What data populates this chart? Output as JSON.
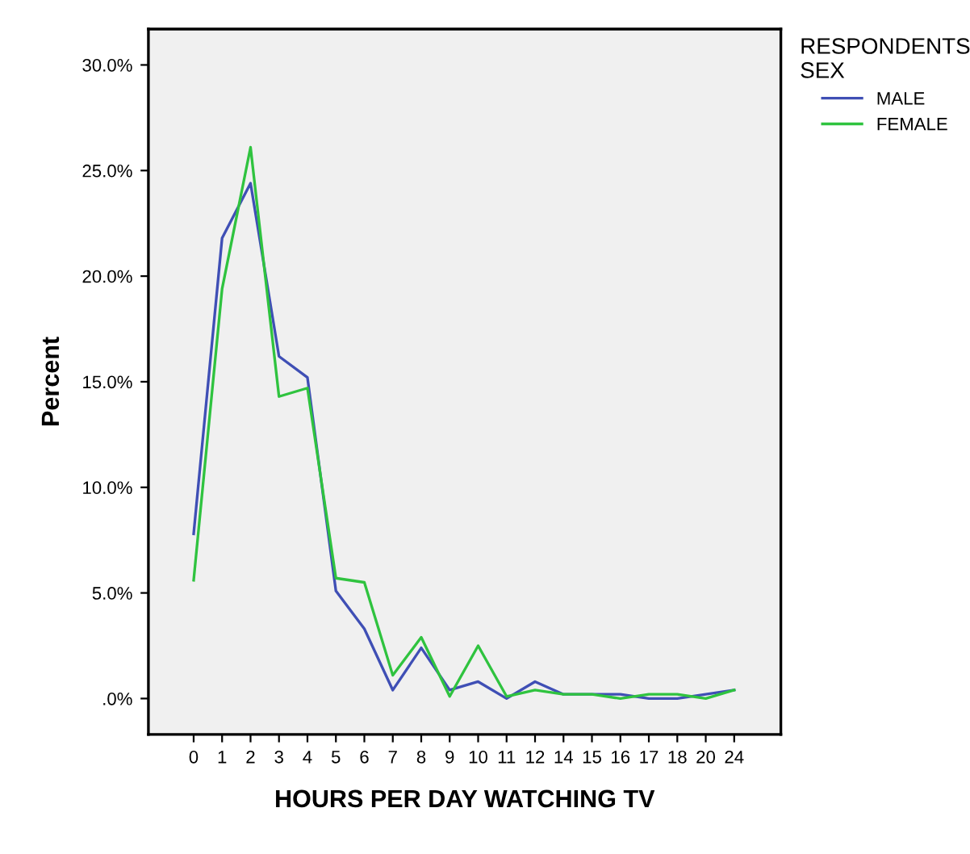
{
  "chart_data": {
    "type": "line",
    "xlabel": "HOURS PER DAY WATCHING TV",
    "ylabel": "Percent",
    "legend_title": "RESPONDENTS\nSEX",
    "categories": [
      "0",
      "1",
      "2",
      "3",
      "4",
      "5",
      "6",
      "7",
      "8",
      "9",
      "10",
      "11",
      "12",
      "14",
      "15",
      "16",
      "17",
      "18",
      "20",
      "24"
    ],
    "series": [
      {
        "name": "MALE",
        "color": "#3f4fb5",
        "values": [
          7.8,
          21.8,
          24.4,
          16.2,
          15.2,
          5.1,
          3.3,
          0.4,
          2.4,
          0.4,
          0.8,
          0.0,
          0.8,
          0.2,
          0.2,
          0.2,
          0.0,
          0.0,
          0.2,
          0.4
        ]
      },
      {
        "name": "FEMALE",
        "color": "#2fc33f",
        "values": [
          5.6,
          19.4,
          26.1,
          14.3,
          14.7,
          5.7,
          5.5,
          1.1,
          2.9,
          0.1,
          2.5,
          0.1,
          0.4,
          0.2,
          0.2,
          0.0,
          0.2,
          0.2,
          0.0,
          0.4
        ]
      }
    ],
    "ylim": [
      -1.7,
      31.7
    ],
    "yticks": [
      {
        "value": 0,
        "label": ".0%"
      },
      {
        "value": 5,
        "label": "5.0%"
      },
      {
        "value": 10,
        "label": "10.0%"
      },
      {
        "value": 15,
        "label": "15.0%"
      },
      {
        "value": 20,
        "label": "20.0%"
      },
      {
        "value": 25,
        "label": "25.0%"
      },
      {
        "value": 30,
        "label": "30.0%"
      }
    ],
    "grid": false,
    "legend": "top right",
    "marker": "none",
    "line_style": "solid"
  }
}
